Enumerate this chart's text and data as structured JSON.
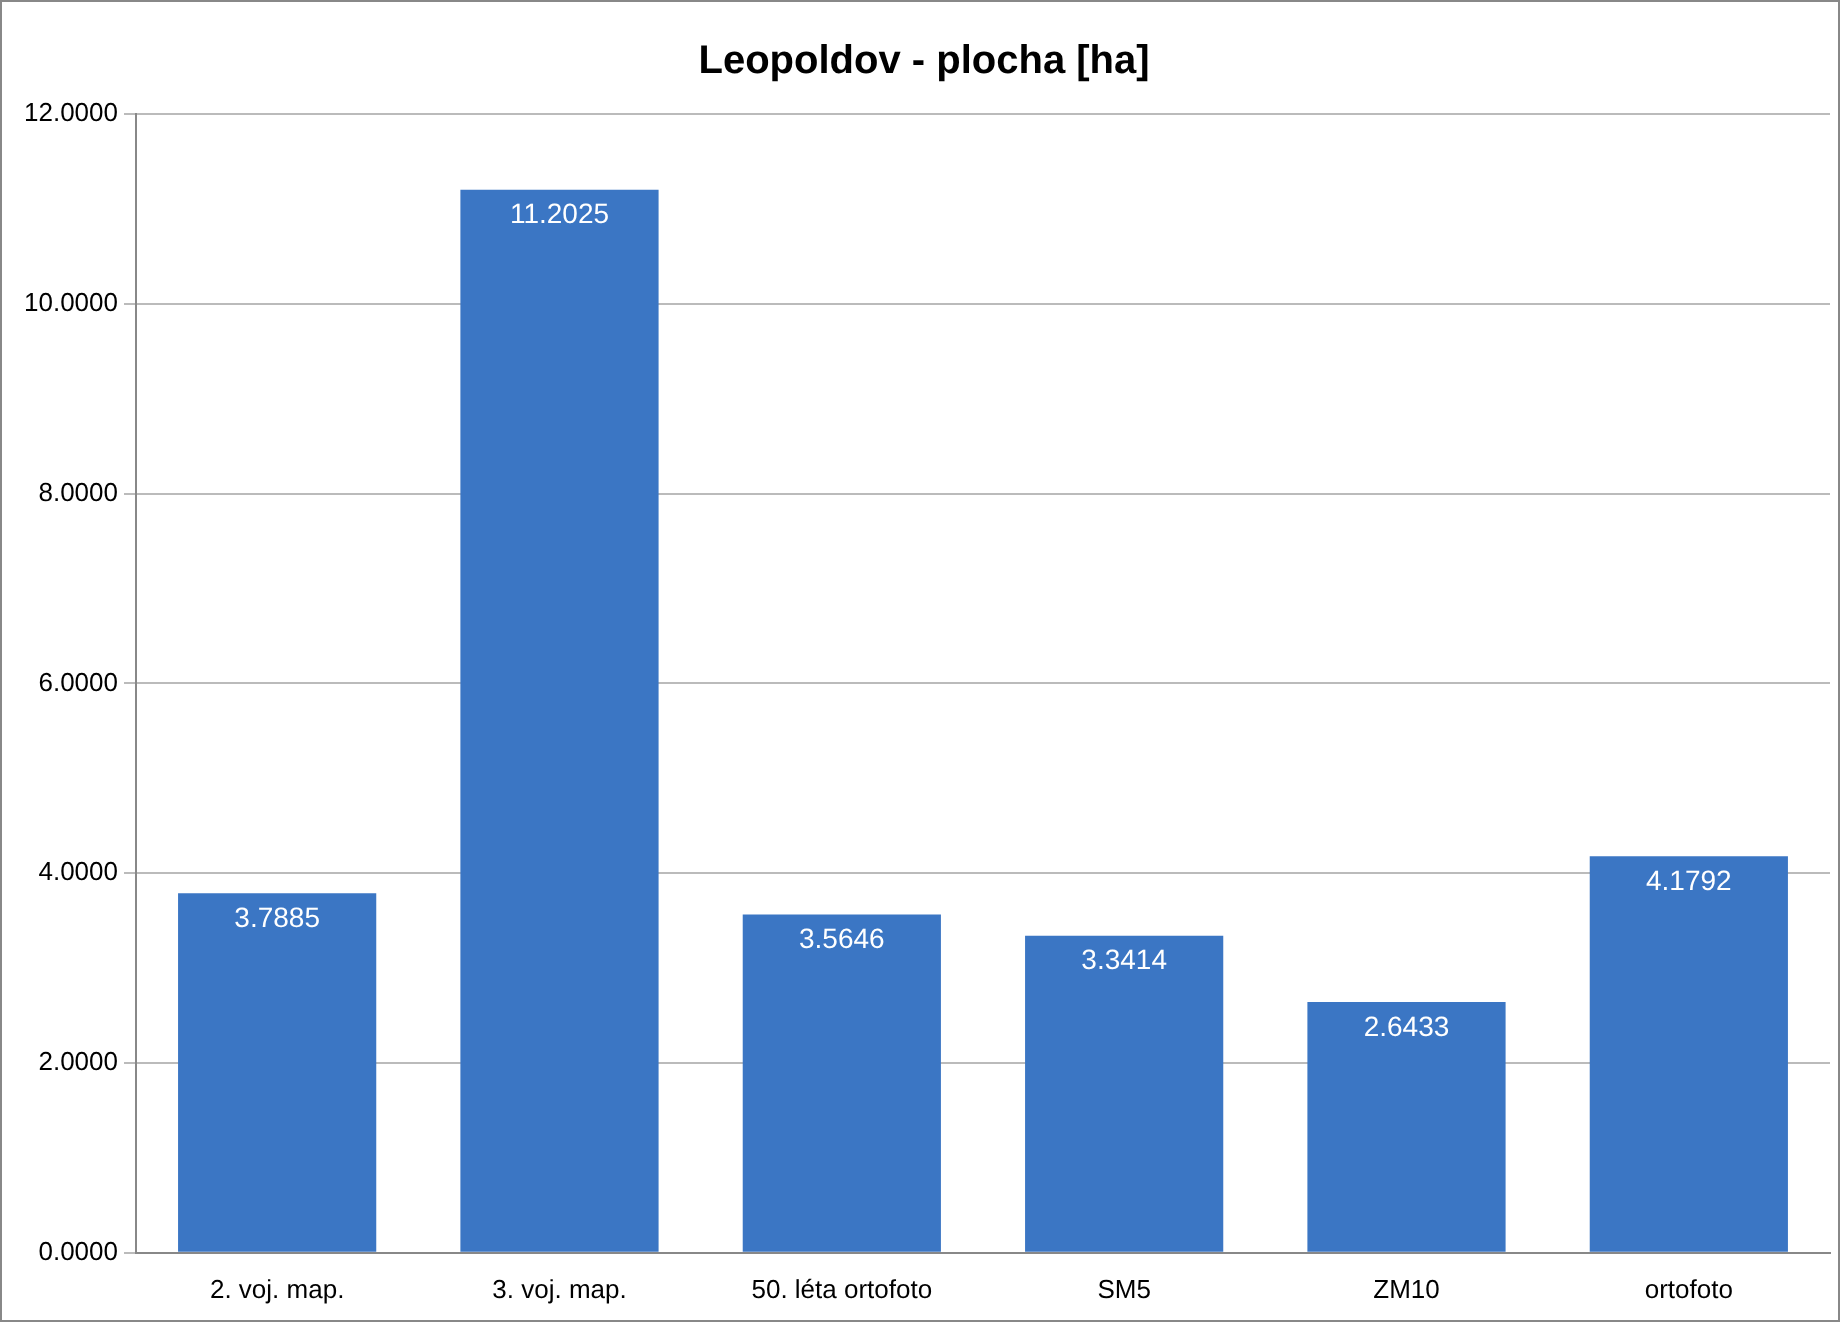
{
  "chart_data": {
    "type": "bar",
    "title": "Leopoldov - plocha [ha]",
    "categories": [
      "2. voj. map.",
      "3. voj. map.",
      "50. léta ortofoto",
      "SM5",
      "ZM10",
      "ortofoto"
    ],
    "values": [
      3.7885,
      11.2025,
      3.5646,
      3.3414,
      2.6433,
      4.1792
    ],
    "value_labels": [
      "3.7885",
      "11.2025",
      "3.5646",
      "3.3414",
      "2.6433",
      "4.1792"
    ],
    "color": "#3b76c4",
    "ylim": [
      0,
      12
    ],
    "yticks": [
      {
        "value": 0,
        "label": "0.0000"
      },
      {
        "value": 2,
        "label": "2.0000"
      },
      {
        "value": 4,
        "label": "4.0000"
      },
      {
        "value": 6,
        "label": "6.0000"
      },
      {
        "value": 8,
        "label": "8.0000"
      },
      {
        "value": 10,
        "label": "10.0000"
      },
      {
        "value": 12,
        "label": "12.0000"
      }
    ],
    "grid": "y",
    "legend": false
  }
}
